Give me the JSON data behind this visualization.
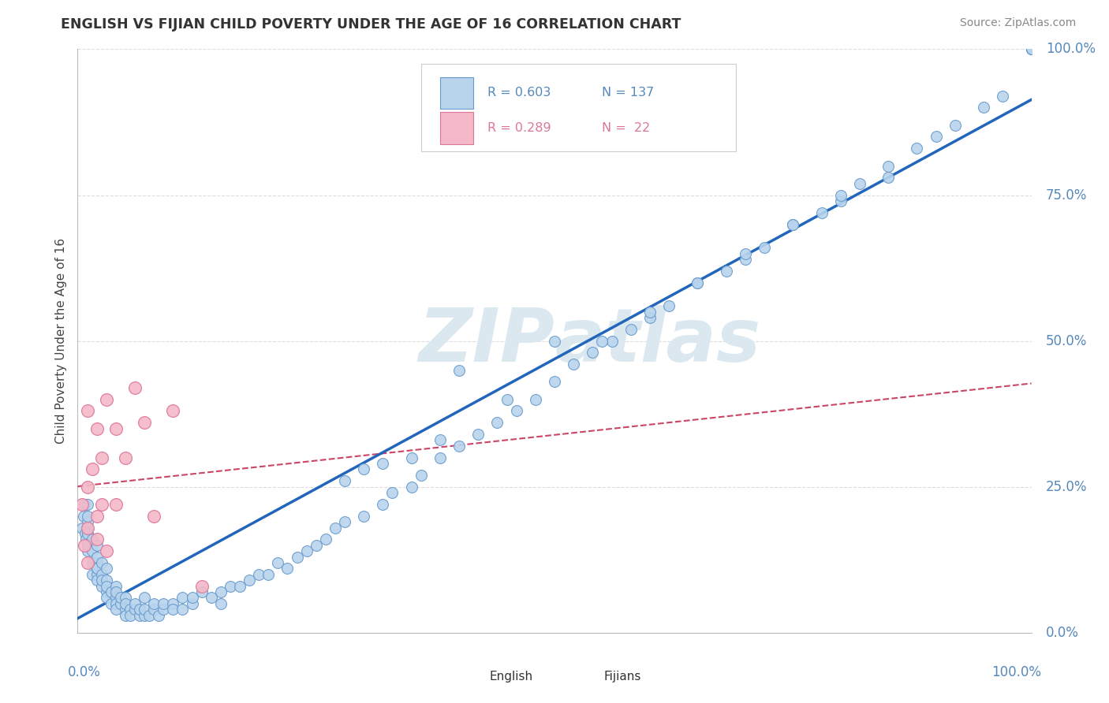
{
  "title": "ENGLISH VS FIJIAN CHILD POVERTY UNDER THE AGE OF 16 CORRELATION CHART",
  "source": "Source: ZipAtlas.com",
  "ylabel": "Child Poverty Under the Age of 16",
  "ytick_labels": [
    "0.0%",
    "25.0%",
    "50.0%",
    "75.0%",
    "100.0%"
  ],
  "ytick_values": [
    0.0,
    0.25,
    0.5,
    0.75,
    1.0
  ],
  "english_R": 0.603,
  "english_N": 137,
  "fijian_R": 0.289,
  "fijian_N": 22,
  "legend_label1": "English",
  "legend_label2": "Fijians",
  "english_color": "#b8d4ed",
  "english_edge_color": "#6699cc",
  "fijian_color": "#f4b8c8",
  "fijian_edge_color": "#dd7799",
  "english_line_color": "#2266bb",
  "fijian_line_color": "#cc4466",
  "background_color": "#ffffff",
  "title_color": "#333333",
  "source_color": "#888888",
  "axis_label_color": "#5588bb",
  "grid_color": "#dddddd",
  "watermark_color": "#dce8f0",
  "english_x": [
    0.005,
    0.006,
    0.007,
    0.008,
    0.009,
    0.01,
    0.01,
    0.01,
    0.01,
    0.01,
    0.01,
    0.01,
    0.015,
    0.015,
    0.015,
    0.015,
    0.02,
    0.02,
    0.02,
    0.02,
    0.02,
    0.02,
    0.02,
    0.025,
    0.025,
    0.025,
    0.025,
    0.03,
    0.03,
    0.03,
    0.03,
    0.03,
    0.035,
    0.035,
    0.04,
    0.04,
    0.04,
    0.04,
    0.04,
    0.045,
    0.045,
    0.05,
    0.05,
    0.05,
    0.05,
    0.055,
    0.055,
    0.06,
    0.06,
    0.065,
    0.065,
    0.07,
    0.07,
    0.07,
    0.075,
    0.08,
    0.08,
    0.085,
    0.09,
    0.09,
    0.1,
    0.1,
    0.11,
    0.11,
    0.12,
    0.12,
    0.13,
    0.14,
    0.15,
    0.15,
    0.16,
    0.17,
    0.18,
    0.19,
    0.2,
    0.21,
    0.22,
    0.23,
    0.24,
    0.25,
    0.26,
    0.27,
    0.28,
    0.3,
    0.32,
    0.33,
    0.35,
    0.36,
    0.38,
    0.4,
    0.42,
    0.44,
    0.46,
    0.48,
    0.5,
    0.52,
    0.54,
    0.56,
    0.58,
    0.6,
    0.62,
    0.65,
    0.68,
    0.7,
    0.72,
    0.75,
    0.78,
    0.8,
    0.82,
    0.85,
    0.88,
    0.9,
    0.92,
    0.95,
    0.97,
    1.0,
    1.0,
    1.0,
    1.0,
    1.0,
    1.0,
    1.0,
    0.55,
    0.4,
    0.6,
    0.5,
    0.7,
    0.45,
    0.65,
    0.75,
    0.8,
    0.85,
    0.3,
    0.35,
    0.28,
    0.32,
    0.38
  ],
  "english_y": [
    0.18,
    0.2,
    0.22,
    0.17,
    0.16,
    0.18,
    0.22,
    0.19,
    0.17,
    0.2,
    0.15,
    0.14,
    0.16,
    0.14,
    0.12,
    0.1,
    0.12,
    0.15,
    0.11,
    0.13,
    0.1,
    0.09,
    0.11,
    0.1,
    0.12,
    0.08,
    0.09,
    0.09,
    0.07,
    0.08,
    0.11,
    0.06,
    0.07,
    0.05,
    0.06,
    0.05,
    0.08,
    0.04,
    0.07,
    0.05,
    0.06,
    0.04,
    0.06,
    0.03,
    0.05,
    0.04,
    0.03,
    0.04,
    0.05,
    0.03,
    0.04,
    0.03,
    0.04,
    0.06,
    0.03,
    0.04,
    0.05,
    0.03,
    0.04,
    0.05,
    0.05,
    0.04,
    0.06,
    0.04,
    0.05,
    0.06,
    0.07,
    0.06,
    0.05,
    0.07,
    0.08,
    0.08,
    0.09,
    0.1,
    0.1,
    0.12,
    0.11,
    0.13,
    0.14,
    0.15,
    0.16,
    0.18,
    0.19,
    0.2,
    0.22,
    0.24,
    0.25,
    0.27,
    0.3,
    0.32,
    0.34,
    0.36,
    0.38,
    0.4,
    0.43,
    0.46,
    0.48,
    0.5,
    0.52,
    0.54,
    0.56,
    0.6,
    0.62,
    0.64,
    0.66,
    0.7,
    0.72,
    0.74,
    0.77,
    0.8,
    0.83,
    0.85,
    0.87,
    0.9,
    0.92,
    1.0,
    1.0,
    1.0,
    1.0,
    1.0,
    1.0,
    1.0,
    0.5,
    0.45,
    0.55,
    0.5,
    0.65,
    0.4,
    0.6,
    0.7,
    0.75,
    0.78,
    0.28,
    0.3,
    0.26,
    0.29,
    0.33
  ],
  "fijian_x": [
    0.005,
    0.007,
    0.01,
    0.01,
    0.01,
    0.01,
    0.015,
    0.02,
    0.02,
    0.02,
    0.025,
    0.025,
    0.03,
    0.03,
    0.04,
    0.04,
    0.05,
    0.06,
    0.07,
    0.08,
    0.1,
    0.13
  ],
  "fijian_y": [
    0.22,
    0.15,
    0.38,
    0.25,
    0.18,
    0.12,
    0.28,
    0.35,
    0.2,
    0.16,
    0.3,
    0.22,
    0.4,
    0.14,
    0.35,
    0.22,
    0.3,
    0.42,
    0.36,
    0.2,
    0.38,
    0.08
  ]
}
